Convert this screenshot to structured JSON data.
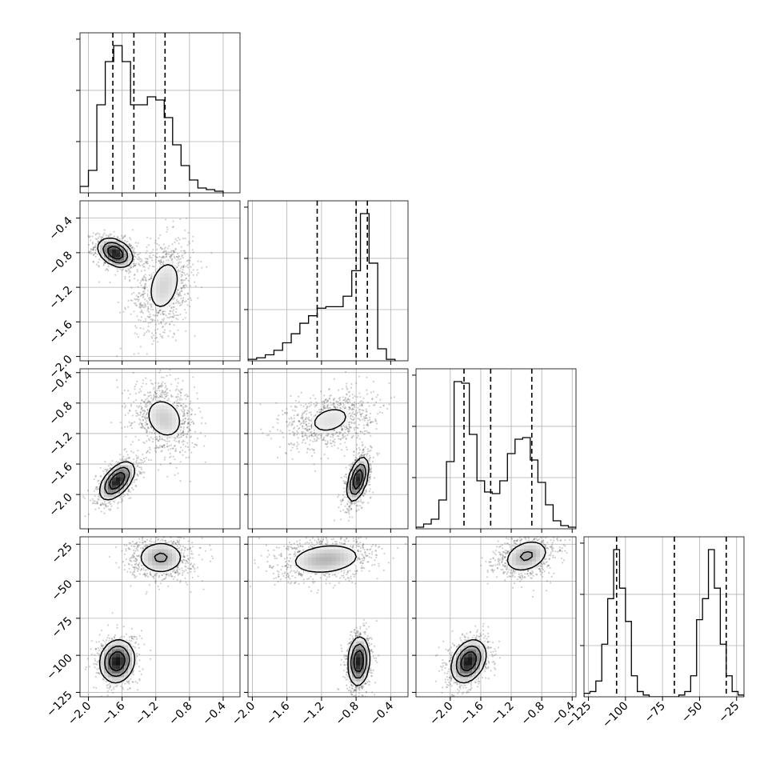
{
  "chart_data": {
    "type": "corner",
    "title": "",
    "parameters": [
      "",
      "",
      "",
      ""
    ],
    "grid": true,
    "colors": {
      "line": "#000000",
      "grid": "#b0b0b0",
      "density": "#000000",
      "points": "#555555"
    },
    "axes": {
      "p0": {
        "range": [
          -2.1,
          -0.2
        ],
        "ticks": [
          -2.0,
          -1.6,
          -1.2,
          -0.8,
          -0.4
        ],
        "tick_labels": [
          "−2.0",
          "−1.6",
          "−1.2",
          "−0.8",
          "−0.4"
        ]
      },
      "p1": {
        "range": [
          -2.05,
          -0.2
        ],
        "ticks": [
          -2.0,
          -1.6,
          -1.2,
          -0.8,
          -0.4
        ],
        "tick_labels": [
          "−2.0",
          "−1.6",
          "−1.2",
          "−0.8",
          "−0.4"
        ]
      },
      "p2": {
        "range": [
          -2.45,
          -0.35
        ],
        "ticks": [
          -2.0,
          -1.6,
          -1.2,
          -0.8,
          -0.4
        ],
        "tick_labels": [
          "−2.0",
          "−1.6",
          "−1.2",
          "−0.8",
          "−0.4"
        ]
      },
      "p3": {
        "range": [
          -128,
          -20
        ],
        "ticks": [
          -125,
          -100,
          -75,
          -50,
          -25
        ],
        "tick_labels": [
          "−125",
          "−100",
          "−75",
          "−50",
          "−25"
        ]
      }
    },
    "diagonal": [
      {
        "param": 0,
        "quantiles": [
          -1.71,
          -1.46,
          -1.09
        ],
        "bin_edges": [
          -2.1,
          -2.0,
          -1.9,
          -1.8,
          -1.7,
          -1.6,
          -1.5,
          -1.4,
          -1.3,
          -1.2,
          -1.1,
          -1.0,
          -0.9,
          -0.8,
          -0.7,
          -0.6,
          -0.5,
          -0.4
        ],
        "counts": [
          0.04,
          0.14,
          0.55,
          0.82,
          0.92,
          0.82,
          0.55,
          0.55,
          0.6,
          0.58,
          0.47,
          0.3,
          0.17,
          0.08,
          0.03,
          0.02,
          0.01
        ]
      },
      {
        "param": 1,
        "quantiles": [
          -1.25,
          -0.8,
          -0.67
        ],
        "bin_edges": [
          -2.05,
          -1.95,
          -1.85,
          -1.75,
          -1.65,
          -1.55,
          -1.45,
          -1.35,
          -1.25,
          -1.15,
          -1.05,
          -0.95,
          -0.85,
          -0.75,
          -0.65,
          -0.55,
          -0.45,
          -0.35
        ],
        "counts": [
          0.01,
          0.02,
          0.04,
          0.07,
          0.12,
          0.18,
          0.25,
          0.3,
          0.35,
          0.36,
          0.36,
          0.43,
          0.6,
          0.98,
          0.65,
          0.08,
          0.01
        ]
      },
      {
        "param": 2,
        "quantiles": [
          -1.82,
          -1.47,
          -0.93
        ],
        "bin_edges": [
          -2.45,
          -2.35,
          -2.25,
          -2.15,
          -2.05,
          -1.95,
          -1.85,
          -1.75,
          -1.65,
          -1.55,
          -1.45,
          -1.35,
          -1.25,
          -1.15,
          -1.05,
          -0.95,
          -0.85,
          -0.75,
          -0.65,
          -0.55,
          -0.45,
          -0.35
        ],
        "counts": [
          0.01,
          0.03,
          0.06,
          0.18,
          0.42,
          0.92,
          0.91,
          0.59,
          0.3,
          0.23,
          0.22,
          0.3,
          0.47,
          0.56,
          0.57,
          0.43,
          0.29,
          0.15,
          0.05,
          0.02,
          0.01
        ]
      },
      {
        "param": 3,
        "quantiles": [
          -106,
          -67,
          -32
        ],
        "bin_edges": [
          -128,
          -124,
          -120,
          -116,
          -112,
          -108,
          -104,
          -100,
          -96,
          -92,
          -88,
          -84,
          -80,
          -76,
          -72,
          -68,
          -64,
          -60,
          -56,
          -52,
          -48,
          -44,
          -40,
          -36,
          -32,
          -28,
          -24,
          -20
        ],
        "counts": [
          0.02,
          0.03,
          0.09,
          0.3,
          0.56,
          0.84,
          0.62,
          0.43,
          0.12,
          0.03,
          0.01,
          0,
          0,
          0,
          0,
          0,
          0.01,
          0.03,
          0.12,
          0.44,
          0.56,
          0.84,
          0.62,
          0.3,
          0.12,
          0.03,
          0.01
        ]
      }
    ],
    "panels": [
      {
        "row": 1,
        "col": 0,
        "modes": [
          {
            "x": -1.68,
            "y": -0.8,
            "sx": 0.1,
            "sy": 0.08,
            "rho": -0.35,
            "peak": 1.0
          },
          {
            "x": -1.1,
            "y": -1.18,
            "sx": 0.14,
            "sy": 0.22,
            "rho": 0.3,
            "peak": 0.22
          }
        ]
      },
      {
        "row": 2,
        "col": 0,
        "modes": [
          {
            "x": -1.66,
            "y": -1.82,
            "sx": 0.1,
            "sy": 0.12,
            "rho": 0.55,
            "peak": 1.0
          },
          {
            "x": -1.1,
            "y": -1.0,
            "sx": 0.15,
            "sy": 0.18,
            "rho": -0.2,
            "peak": 0.25
          }
        ]
      },
      {
        "row": 2,
        "col": 1,
        "modes": [
          {
            "x": -0.78,
            "y": -1.8,
            "sx": 0.06,
            "sy": 0.14,
            "rho": 0.5,
            "peak": 1.0
          },
          {
            "x": -1.1,
            "y": -1.02,
            "sx": 0.2,
            "sy": 0.15,
            "rho": 0.3,
            "peak": 0.18
          }
        ]
      },
      {
        "row": 3,
        "col": 0,
        "modes": [
          {
            "x": -1.66,
            "y": -104,
            "sx": 0.1,
            "sy": 7.0,
            "rho": 0.1,
            "peak": 1.0
          },
          {
            "x": -1.14,
            "y": -34,
            "sx": 0.15,
            "sy": 6.0,
            "rho": 0.0,
            "peak": 0.4
          }
        ]
      },
      {
        "row": 3,
        "col": 1,
        "modes": [
          {
            "x": -0.77,
            "y": -104,
            "sx": 0.06,
            "sy": 8.0,
            "rho": 0.1,
            "peak": 1.0
          },
          {
            "x": -1.15,
            "y": -35,
            "sx": 0.24,
            "sy": 6.0,
            "rho": 0.2,
            "peak": 0.35
          }
        ]
      },
      {
        "row": 3,
        "col": 2,
        "modes": [
          {
            "x": -1.76,
            "y": -104,
            "sx": 0.11,
            "sy": 7.0,
            "rho": 0.3,
            "peak": 1.0
          },
          {
            "x": -1.0,
            "y": -33,
            "sx": 0.16,
            "sy": 6.0,
            "rho": 0.3,
            "peak": 0.4
          }
        ]
      }
    ],
    "contour_levels": [
      0.12,
      0.35,
      0.65
    ]
  }
}
